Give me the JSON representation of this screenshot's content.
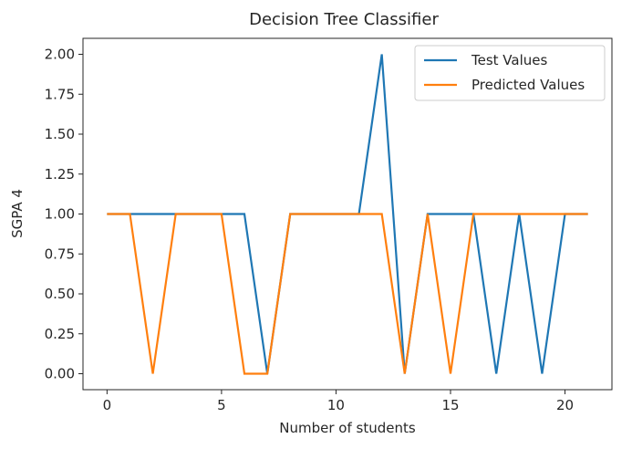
{
  "chart_data": {
    "type": "line",
    "title": "Decision Tree Classifier",
    "xlabel": "Number of students",
    "ylabel": "SGPA 4",
    "xlim": [
      -1.05,
      22.05
    ],
    "ylim": [
      -0.1,
      2.1
    ],
    "xticks": [
      0,
      5,
      10,
      15,
      20
    ],
    "yticks": [
      0.0,
      0.25,
      0.5,
      0.75,
      1.0,
      1.25,
      1.5,
      1.75,
      2.0
    ],
    "ytick_labels": [
      "0.00",
      "0.25",
      "0.50",
      "0.75",
      "1.00",
      "1.25",
      "1.50",
      "1.75",
      "2.00"
    ],
    "xtick_labels": [
      "0",
      "5",
      "10",
      "15",
      "20"
    ],
    "grid": false,
    "legend_position": "top-right",
    "x": [
      0,
      1,
      2,
      3,
      4,
      5,
      6,
      7,
      8,
      9,
      10,
      11,
      12,
      13,
      14,
      15,
      16,
      17,
      18,
      19,
      20,
      21
    ],
    "series": [
      {
        "name": "Test Values",
        "color": "#1f77b4",
        "values": [
          1,
          1,
          1,
          1,
          1,
          1,
          1,
          0,
          1,
          1,
          1,
          1,
          2,
          0,
          1,
          1,
          1,
          0,
          1,
          0,
          1,
          1
        ]
      },
      {
        "name": "Predicted Values",
        "color": "#ff7f0e",
        "values": [
          1,
          1,
          0,
          1,
          1,
          1,
          0,
          0,
          1,
          1,
          1,
          1,
          1,
          0,
          1,
          0,
          1,
          1,
          1,
          1,
          1,
          1
        ]
      }
    ]
  }
}
